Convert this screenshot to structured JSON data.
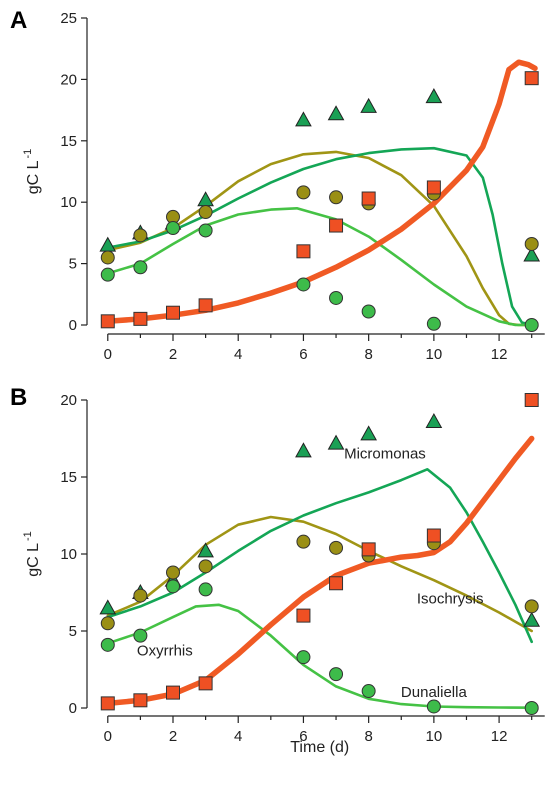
{
  "colors": {
    "triangle": "#1aa055",
    "olive": "#9a8f15",
    "circle": "#3dbb4a",
    "square": "#ef5023",
    "red_line": "#f05a24",
    "olive_line": "#a09515",
    "teal_line": "#14a656",
    "green_line": "#45c245"
  },
  "chart_data": [
    {
      "type": "scatter",
      "panel_label": "A",
      "ylabel": "gC L",
      "ylabel_sup": "-1",
      "xlabel": "",
      "xlim": [
        -0.3,
        13.5
      ],
      "ylim": [
        0,
        25
      ],
      "xticks": [
        0,
        2,
        4,
        6,
        8,
        10,
        12
      ],
      "xtick_labels": [
        "0",
        "2",
        "4",
        "6",
        "8",
        "10",
        "12"
      ],
      "yticks": [
        0,
        5,
        10,
        15,
        20,
        25
      ],
      "ytick_labels": [
        "0",
        "5",
        "10",
        "15",
        "20",
        "25"
      ],
      "points": [
        {
          "series": "triangle",
          "x": [
            0,
            1,
            2,
            3,
            6,
            7,
            8,
            10,
            13
          ],
          "y": [
            6.5,
            7.5,
            8.3,
            10.2,
            16.7,
            17.2,
            17.8,
            18.6,
            5.7
          ]
        },
        {
          "series": "olive",
          "x": [
            0,
            1,
            2,
            3,
            6,
            7,
            8,
            10,
            13
          ],
          "y": [
            5.5,
            7.3,
            8.8,
            9.2,
            10.8,
            10.4,
            9.9,
            10.7,
            6.6
          ]
        },
        {
          "series": "circle",
          "x": [
            0,
            1,
            2,
            3,
            6,
            7,
            8,
            10,
            13
          ],
          "y": [
            4.1,
            4.7,
            7.9,
            7.7,
            3.3,
            2.2,
            1.1,
            0.1,
            0.0
          ]
        },
        {
          "series": "square",
          "x": [
            0,
            1,
            2,
            3,
            6,
            7,
            8,
            10,
            13
          ],
          "y": [
            0.3,
            0.5,
            1.0,
            1.6,
            6.0,
            8.1,
            10.3,
            11.2,
            20.1
          ]
        }
      ],
      "lines": [
        {
          "series": "olive_line",
          "x": [
            0,
            1,
            2,
            3,
            4,
            5,
            6,
            7,
            8,
            9,
            10,
            11,
            11.5,
            12,
            12.3,
            12.6,
            13
          ],
          "y": [
            6.1,
            6.7,
            7.9,
            9.7,
            11.7,
            13.1,
            13.9,
            14.1,
            13.6,
            12.2,
            9.7,
            5.6,
            3.0,
            0.8,
            0.1,
            0,
            0
          ]
        },
        {
          "series": "teal_line",
          "x": [
            0,
            1,
            2,
            3,
            4,
            5,
            6,
            7,
            8,
            9,
            10,
            11,
            11.5,
            11.8,
            12.1,
            12.4,
            12.7,
            13
          ],
          "y": [
            6.3,
            6.8,
            7.7,
            8.9,
            10.3,
            11.6,
            12.7,
            13.5,
            14.0,
            14.3,
            14.4,
            13.8,
            12.0,
            9.0,
            5.0,
            1.5,
            0.2,
            0
          ]
        },
        {
          "series": "green_line",
          "x": [
            0,
            1,
            2,
            3,
            4,
            5,
            5.8,
            7,
            8,
            9,
            10,
            11,
            12,
            12.5,
            13
          ],
          "y": [
            4.2,
            5.0,
            6.6,
            8.1,
            9.0,
            9.4,
            9.5,
            8.6,
            7.2,
            5.3,
            3.3,
            1.5,
            0.3,
            0,
            0
          ]
        },
        {
          "series": "red_line",
          "x": [
            0,
            1,
            2,
            3,
            4,
            5,
            6,
            7,
            8,
            9,
            10,
            11,
            11.5,
            12,
            12.3,
            12.6,
            12.9,
            13.1
          ],
          "y": [
            0.3,
            0.5,
            0.8,
            1.2,
            1.8,
            2.6,
            3.5,
            4.7,
            6.1,
            7.8,
            9.9,
            12.6,
            14.5,
            18.0,
            20.8,
            21.4,
            21.2,
            20.9
          ]
        }
      ],
      "annotations": []
    },
    {
      "type": "scatter",
      "panel_label": "B",
      "ylabel": "gC L",
      "ylabel_sup": "-1",
      "xlabel": "Time (d)",
      "xlim": [
        -0.3,
        13.5
      ],
      "ylim": [
        0,
        20
      ],
      "xticks": [
        0,
        2,
        4,
        6,
        8,
        10,
        12
      ],
      "xtick_labels": [
        "0",
        "2",
        "4",
        "6",
        "8",
        "10",
        "12"
      ],
      "yticks": [
        0,
        5,
        10,
        15,
        20
      ],
      "ytick_labels": [
        "0",
        "5",
        "10",
        "15",
        "20"
      ],
      "points": [
        {
          "series": "triangle",
          "x": [
            0,
            1,
            2,
            3,
            6,
            7,
            8,
            10,
            13
          ],
          "y": [
            6.5,
            7.5,
            8.3,
            10.2,
            16.7,
            17.2,
            17.8,
            18.6,
            5.7
          ]
        },
        {
          "series": "olive",
          "x": [
            0,
            1,
            2,
            3,
            6,
            7,
            8,
            10,
            13
          ],
          "y": [
            5.5,
            7.3,
            8.8,
            9.2,
            10.8,
            10.4,
            9.9,
            10.7,
            6.6
          ]
        },
        {
          "series": "circle",
          "x": [
            0,
            1,
            2,
            3,
            6,
            7,
            8,
            10,
            13
          ],
          "y": [
            4.1,
            4.7,
            7.9,
            7.7,
            3.3,
            2.2,
            1.1,
            0.1,
            0.0
          ]
        },
        {
          "series": "square",
          "x": [
            0,
            1,
            2,
            3,
            6,
            7,
            8,
            10,
            13
          ],
          "y": [
            0.3,
            0.5,
            1.0,
            1.6,
            6.0,
            8.1,
            10.3,
            11.2,
            20.0
          ]
        }
      ],
      "lines": [
        {
          "series": "olive_line",
          "x": [
            0,
            1,
            2,
            3,
            4,
            5,
            6,
            7,
            8,
            9,
            10,
            11,
            12,
            13
          ],
          "y": [
            6.0,
            6.9,
            8.6,
            10.6,
            11.9,
            12.4,
            12.1,
            11.3,
            10.2,
            9.2,
            8.3,
            7.3,
            6.2,
            5.0
          ]
        },
        {
          "series": "teal_line",
          "x": [
            0,
            1,
            2,
            3,
            4,
            5,
            6,
            7,
            8,
            9,
            9.8,
            10.5,
            11,
            11.5,
            12,
            12.5,
            13
          ],
          "y": [
            5.9,
            6.6,
            7.5,
            8.8,
            10.2,
            11.5,
            12.5,
            13.3,
            14.0,
            14.8,
            15.5,
            14.3,
            12.7,
            10.8,
            8.8,
            6.7,
            4.3
          ]
        },
        {
          "series": "green_line",
          "x": [
            0,
            1,
            2,
            2.7,
            3.4,
            4,
            5,
            6,
            7,
            8,
            9,
            10,
            11,
            12,
            13
          ],
          "y": [
            4.2,
            4.9,
            5.9,
            6.6,
            6.7,
            6.3,
            4.7,
            2.8,
            1.4,
            0.6,
            0.25,
            0.1,
            0.05,
            0.03,
            0.02
          ]
        },
        {
          "series": "red_line",
          "x": [
            0,
            1,
            2,
            3,
            4,
            5,
            6,
            7,
            8,
            9,
            9.5,
            10,
            10.5,
            11,
            11.5,
            12,
            12.5,
            13
          ],
          "y": [
            0.3,
            0.5,
            0.9,
            1.8,
            3.5,
            5.4,
            7.2,
            8.6,
            9.4,
            9.8,
            9.9,
            10.1,
            10.8,
            12.0,
            13.4,
            14.8,
            16.2,
            17.5
          ]
        }
      ],
      "annotations": [
        {
          "text": "Micromonas",
          "x": 8.5,
          "y": 16.2
        },
        {
          "text": "Isochrysis",
          "x": 10.5,
          "y": 6.8
        },
        {
          "text": "Oxyrrhis",
          "x": 1.75,
          "y": 3.4
        },
        {
          "text": "Dunaliella",
          "x": 10.0,
          "y": 0.7
        }
      ]
    }
  ]
}
